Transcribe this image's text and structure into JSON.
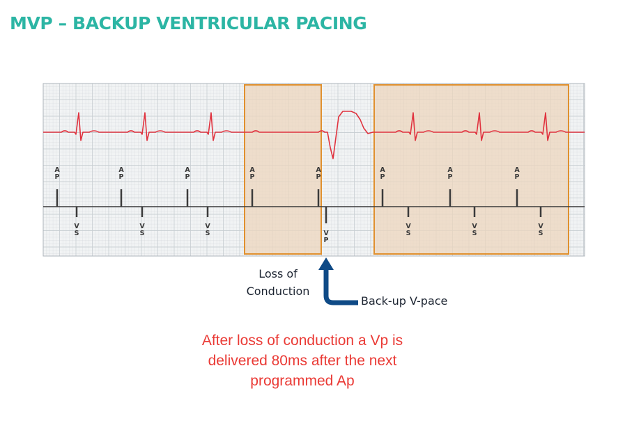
{
  "title": "MVP – BACKUP VENTRICULAR PACING",
  "strip": {
    "ap_marker": [
      "A",
      "P"
    ],
    "vs_marker": [
      "V",
      "S"
    ],
    "vp_marker": [
      "V",
      "P"
    ],
    "events": [
      {
        "type": "AP-VS",
        "highlight": "none"
      },
      {
        "type": "AP-VS",
        "highlight": "none"
      },
      {
        "type": "AP-VS",
        "highlight": "none"
      },
      {
        "type": "AP-nonconducted",
        "highlight": "loss-window"
      },
      {
        "type": "AP-VP",
        "highlight": "loss-window"
      },
      {
        "type": "AP-VS",
        "highlight": "recovery-window"
      },
      {
        "type": "AP-VS",
        "highlight": "recovery-window"
      },
      {
        "type": "AP-VS",
        "highlight": "recovery-window"
      }
    ],
    "colors": {
      "grid_background": "#f1f3f4",
      "grid_line": "#c7cdd2",
      "ecg_trace": "#e0333f",
      "highlight_fill": "#ecd6bd",
      "highlight_border": "#e0902e",
      "marker": "#3b3b3b"
    }
  },
  "annotations": {
    "loss_line1": "Loss of",
    "loss_line2": "Conduction",
    "backup": "Back-up V-pace",
    "arrow_color": "#0f4a86"
  },
  "note": {
    "line1": "After loss of conduction a Vp is",
    "line2": "delivered 80ms after the next",
    "line3": "programmed Ap"
  }
}
